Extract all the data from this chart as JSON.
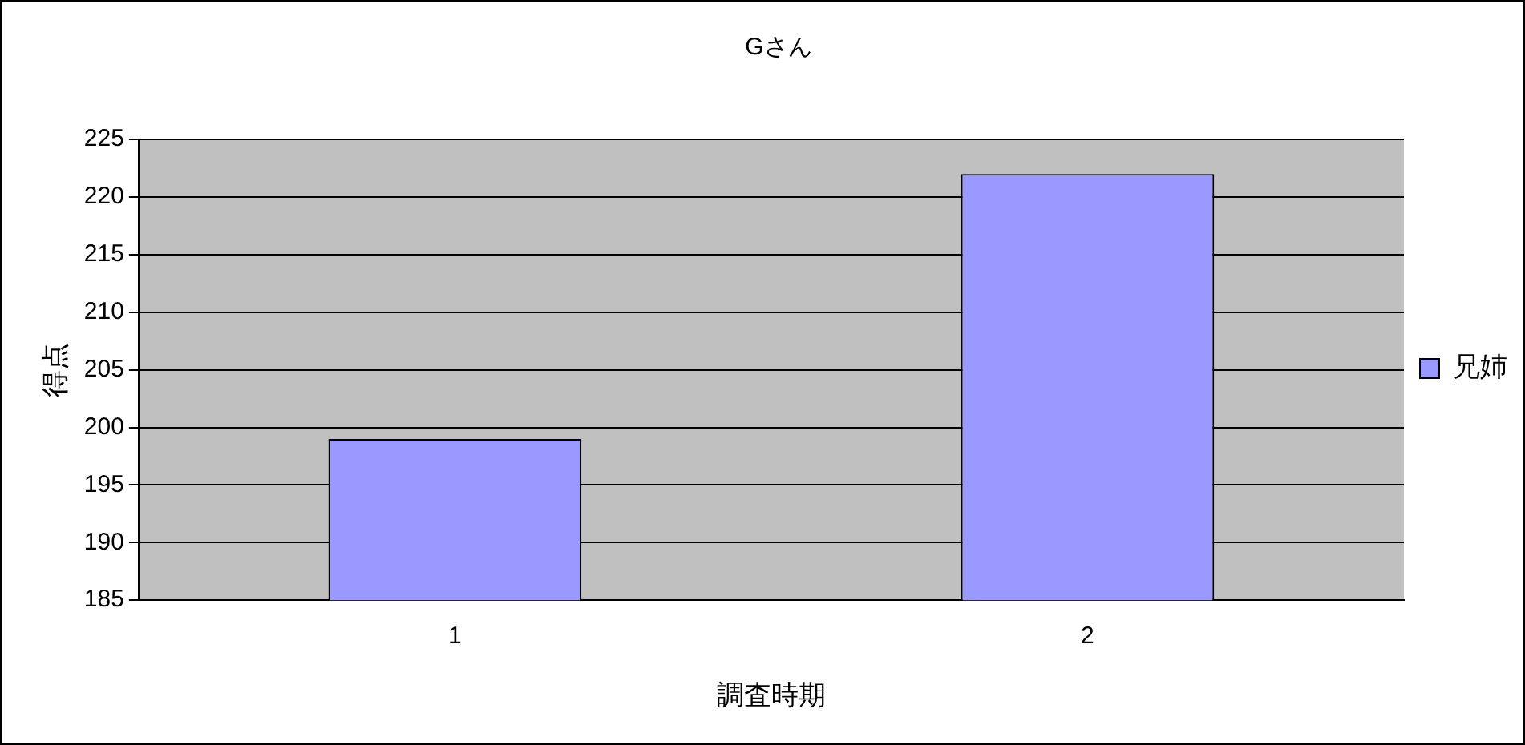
{
  "chart_data": {
    "type": "bar",
    "title": "Gさん",
    "xlabel": "調査時期",
    "ylabel": "得点",
    "categories": [
      "1",
      "2"
    ],
    "series": [
      {
        "name": "兄姉",
        "color": "#9999ff",
        "values": [
          199,
          222
        ]
      }
    ],
    "ylim": [
      185,
      225
    ],
    "yticks": [
      185,
      190,
      195,
      200,
      205,
      210,
      215,
      220,
      225
    ],
    "grid": "y",
    "legend": "right"
  }
}
